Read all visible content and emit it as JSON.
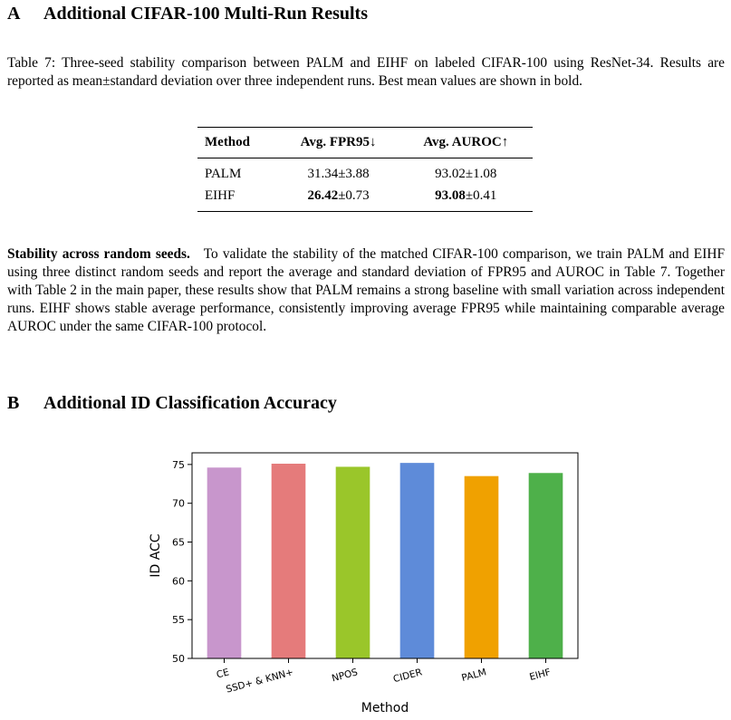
{
  "section_a": {
    "num": "A",
    "title": "Additional CIFAR-100 Multi-Run Results"
  },
  "caption": "Table 7: Three-seed stability comparison between PALM and EIHF on labeled CIFAR-100 using ResNet-34. Results are reported as mean±standard deviation over three independent runs. Best mean values are shown in bold.",
  "table": {
    "headers": [
      "Method",
      "Avg. FPR95↓",
      "Avg. AUROC↑"
    ],
    "rows": [
      {
        "method": "PALM",
        "fpr_mean": "31.34",
        "fpr_sd": "±3.88",
        "auroc_mean": "93.02",
        "auroc_sd": "±1.08"
      },
      {
        "method": "EIHF",
        "fpr_mean": "26.42",
        "fpr_sd": "±0.73",
        "auroc_mean": "93.08",
        "auroc_sd": "±0.41"
      }
    ]
  },
  "paragraph": {
    "lead": "Stability across random seeds.",
    "text": "To validate the stability of the matched CIFAR-100 comparison, we train PALM and EIHF using three distinct random seeds and report the average and standard deviation of FPR95 and AUROC in Table 7. Together with Table 2 in the main paper, these results show that PALM remains a strong baseline with small variation across independent runs. EIHF shows stable average performance, consistently improving average FPR95 while maintaining comparable average AUROC under the same CIFAR-100 protocol."
  },
  "section_b": {
    "num": "B",
    "title": "Additional ID Classification Accuracy"
  },
  "chart_data": {
    "type": "bar",
    "categories": [
      "CE",
      "SSD+ & KNN+",
      "NPOS",
      "CIDER",
      "PALM",
      "EIHF"
    ],
    "values": [
      74.6,
      75.1,
      74.7,
      75.2,
      73.5,
      73.9
    ],
    "colors": [
      "#c896cc",
      "#e57b7b",
      "#9ac62a",
      "#5e8bd9",
      "#f0a100",
      "#4eb04a"
    ],
    "xlabel": "Method",
    "ylabel": "ID ACC",
    "ylim": [
      50,
      76.5
    ],
    "yticks": [
      50,
      55,
      60,
      65,
      70,
      75
    ],
    "grid": false
  }
}
